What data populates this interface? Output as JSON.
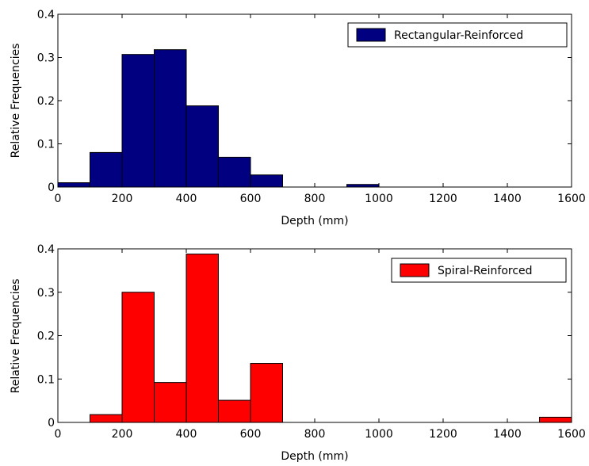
{
  "chart_data": [
    {
      "type": "bar",
      "bin_edges": [
        0,
        100,
        200,
        300,
        400,
        500,
        600,
        700,
        800,
        900,
        1000,
        1100,
        1200,
        1300,
        1400,
        1500,
        1600
      ],
      "values": [
        0.01,
        0.08,
        0.307,
        0.318,
        0.188,
        0.069,
        0.028,
        0,
        0,
        0.006,
        0,
        0,
        0,
        0,
        0,
        0
      ],
      "series": [
        {
          "name": "Rectangular-Reinforced",
          "color": "#000080"
        }
      ],
      "xlabel": "Depth (mm)",
      "ylabel": "Relative Frequencies",
      "xlim": [
        0,
        1600
      ],
      "ylim": [
        0,
        0.4
      ],
      "xticks": [
        "0",
        "200",
        "400",
        "600",
        "800",
        "1000",
        "1200",
        "1400",
        "1600"
      ],
      "yticks": [
        "0",
        "0.1",
        "0.2",
        "0.3",
        "0.4"
      ],
      "legend_position": "top-right",
      "grid": false
    },
    {
      "type": "bar",
      "bin_edges": [
        0,
        100,
        200,
        300,
        400,
        500,
        600,
        700,
        800,
        900,
        1000,
        1100,
        1200,
        1300,
        1400,
        1500,
        1600
      ],
      "values": [
        0,
        0.018,
        0.3,
        0.092,
        0.388,
        0.051,
        0.136,
        0,
        0,
        0,
        0,
        0,
        0,
        0,
        0,
        0.012
      ],
      "series": [
        {
          "name": "Spiral-Reinforced",
          "color": "#ff0000"
        }
      ],
      "xlabel": "Depth (mm)",
      "ylabel": "Relative Frequencies",
      "xlim": [
        0,
        1600
      ],
      "ylim": [
        0,
        0.4
      ],
      "xticks": [
        "0",
        "200",
        "400",
        "600",
        "800",
        "1000",
        "1200",
        "1400",
        "1600"
      ],
      "yticks": [
        "0",
        "0.1",
        "0.2",
        "0.3",
        "0.4"
      ],
      "legend_position": "top-right",
      "grid": false
    }
  ]
}
